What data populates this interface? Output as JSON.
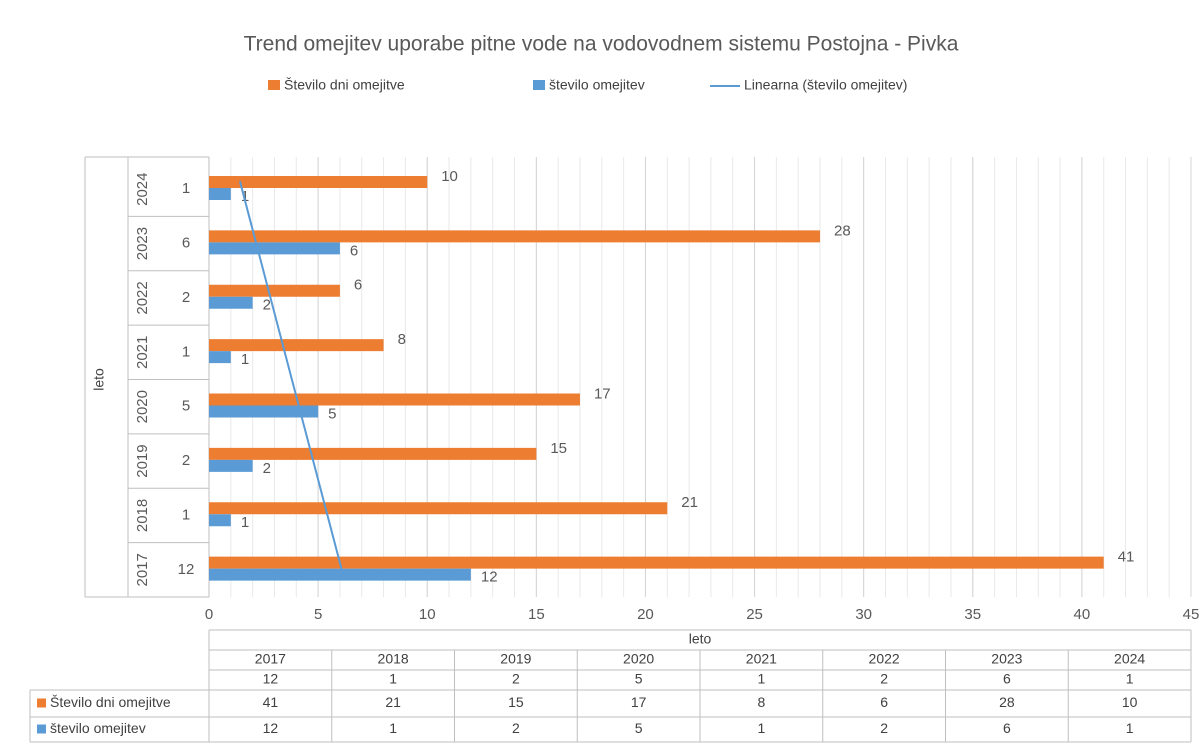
{
  "chart_data": {
    "type": "bar",
    "orientation": "horizontal",
    "title": "Trend omejitev uporabe pitne vode na vodovodnem sistemu Postojna - Pivka",
    "y_label": "leto",
    "table_header": "leto",
    "categories": [
      "2017",
      "2018",
      "2019",
      "2020",
      "2021",
      "2022",
      "2023",
      "2024"
    ],
    "sub_categories": [
      "12",
      "1",
      "2",
      "5",
      "1",
      "2",
      "6",
      "1"
    ],
    "series": [
      {
        "name": "Število dni omejitve",
        "color": "#ED7D31",
        "values": [
          41,
          21,
          15,
          17,
          8,
          6,
          28,
          10
        ]
      },
      {
        "name": "število omejitev",
        "color": "#5B9BD5",
        "values": [
          12,
          1,
          2,
          5,
          1,
          2,
          6,
          1
        ],
        "trendline": {
          "name": "Linearna (število omejitev)",
          "color": "#5B9BD5",
          "type": "linear"
        }
      }
    ],
    "xlim": [
      0,
      45
    ],
    "xticks": [
      0,
      5,
      10,
      15,
      20,
      25,
      30,
      35,
      40,
      45
    ],
    "minor_grid": 1,
    "grid": true,
    "legend": "top",
    "data_table": true
  }
}
